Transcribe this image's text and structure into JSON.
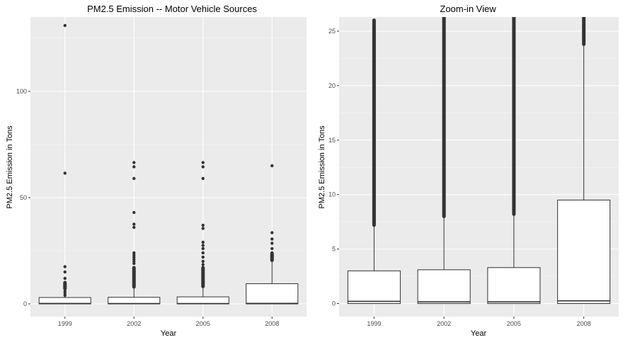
{
  "chart_data": [
    {
      "type": "box",
      "title": "PM2.5 Emission -- Motor Vehicle Sources",
      "xlabel": "Year",
      "ylabel": "PM2.5 Emission in Tons",
      "categories": [
        "1999",
        "2002",
        "2005",
        "2008"
      ],
      "ylim": [
        -6,
        135
      ],
      "yticks": [
        0,
        50,
        100
      ],
      "grid": true,
      "boxes": [
        {
          "q1": 0,
          "median": 0.2,
          "q3": 3.0,
          "whisker_low": 0,
          "whisker_high": 7.2
        },
        {
          "q1": 0,
          "median": 0.15,
          "q3": 3.1,
          "whisker_low": 0,
          "whisker_high": 8.0
        },
        {
          "q1": 0,
          "median": 0.15,
          "q3": 3.3,
          "whisker_low": 0,
          "whisker_high": 8.2
        },
        {
          "q1": 0,
          "median": 0.25,
          "q3": 9.5,
          "whisker_low": 0,
          "whisker_high": 23.8
        }
      ],
      "outliers": [
        {
          "isolated": [
            131,
            61.5,
            17.5,
            15,
            12,
            9,
            7.5,
            6,
            5,
            4
          ],
          "dense_to": 10
        },
        {
          "isolated": [
            66.5,
            64.5,
            59,
            43,
            37.5,
            36,
            24,
            23,
            22,
            21,
            20,
            19
          ],
          "dense_to": 17
        },
        {
          "isolated": [
            66.5,
            64.5,
            59,
            37,
            35.5,
            29,
            27.5,
            26,
            24,
            22,
            20,
            18.5
          ],
          "dense_to": 17
        },
        {
          "isolated": [
            65,
            33.5,
            30.5,
            28.5,
            26,
            24,
            22.5,
            21
          ],
          "dense_to": 20.5
        }
      ]
    },
    {
      "type": "box",
      "title": "Zoom-in View",
      "xlabel": "Year",
      "ylabel": "PM2.5 Emission in Tons",
      "categories": [
        "1999",
        "2002",
        "2005",
        "2008"
      ],
      "ylim": [
        -1.2,
        26.3
      ],
      "yticks": [
        0,
        5,
        10,
        15,
        20,
        25
      ],
      "grid": true,
      "boxes": [
        {
          "q1": 0,
          "median": 0.2,
          "q3": 3.0,
          "whisker_low": 0,
          "whisker_high": 7.2
        },
        {
          "q1": 0,
          "median": 0.15,
          "q3": 3.1,
          "whisker_low": 0,
          "whisker_high": 8.0
        },
        {
          "q1": 0,
          "median": 0.15,
          "q3": 3.3,
          "whisker_low": 0,
          "whisker_high": 8.2
        },
        {
          "q1": 0,
          "median": 0.25,
          "q3": 9.5,
          "whisker_low": 0,
          "whisker_high": 23.8
        }
      ],
      "outliers": [
        {
          "dense_from": 7.2,
          "dense_to": 26.0
        },
        {
          "dense_from": 8.0,
          "dense_to": 26.3
        },
        {
          "dense_from": 8.2,
          "dense_to": 26.3
        },
        {
          "dense_from": 23.8,
          "dense_to": 26.3
        }
      ]
    }
  ]
}
